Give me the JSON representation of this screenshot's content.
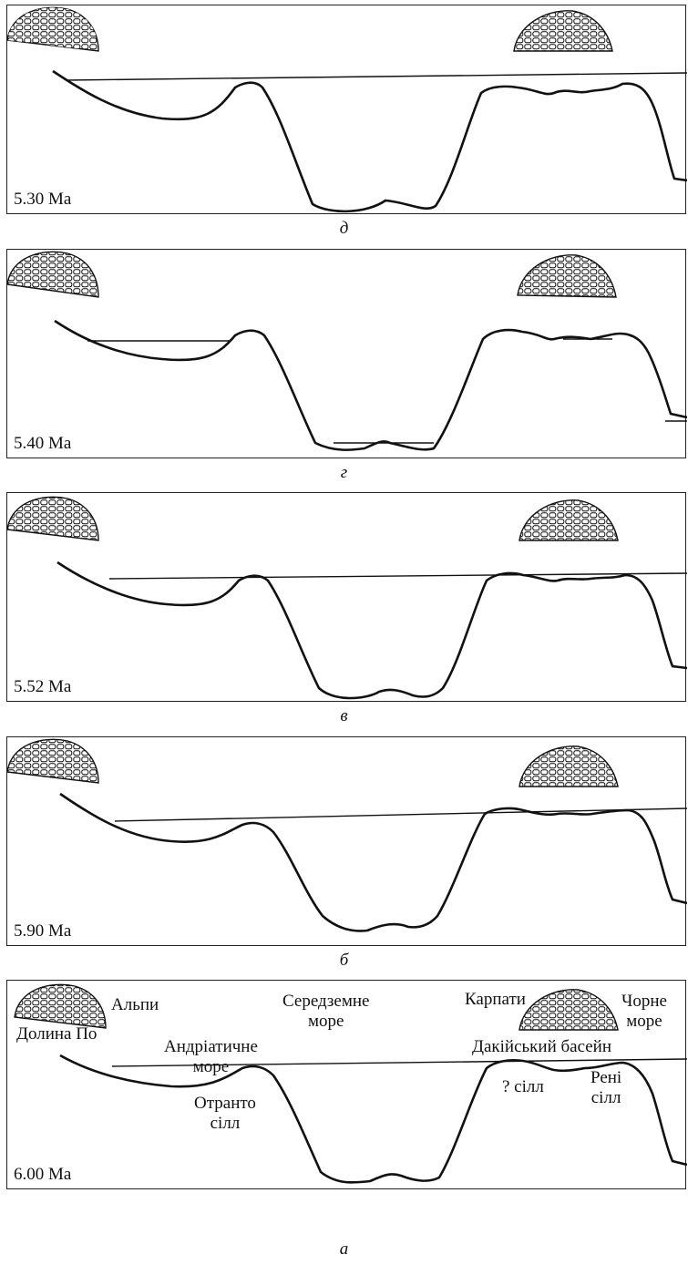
{
  "panels": [
    {
      "age": "5.30 Ma",
      "caption": "д"
    },
    {
      "age": "5.40 Ma",
      "caption": "г"
    },
    {
      "age": "5.52 Ma",
      "caption": "в"
    },
    {
      "age": "5.90 Ma",
      "caption": "б"
    },
    {
      "age": "6.00 Ma",
      "caption": "а"
    }
  ],
  "labels": {
    "alps": "Альпи",
    "po_valley": "Долина По",
    "mediterranean_l1": "Середземне",
    "mediterranean_l2": "море",
    "adriatic_l1": "Андріатичне",
    "adriatic_l2": "море",
    "otranto_l1": "Отранто",
    "otranto_l2": "сілл",
    "carpathians": "Карпати",
    "black_sea_l1": "Чорне",
    "black_sea_l2": "море",
    "dacian_basin": "Дакійський басейн",
    "unknown_sill": "? сілл",
    "reni_l1": "Рені",
    "reni_l2": "сілл"
  }
}
